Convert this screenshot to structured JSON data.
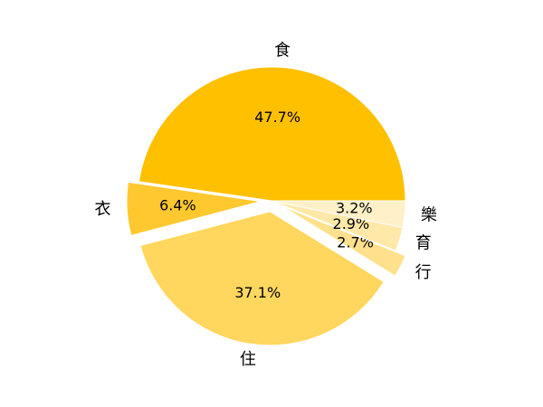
{
  "chart_data": {
    "type": "pie",
    "title": "",
    "start_angle_deg": 0,
    "direction": "counterclockwise",
    "slices": [
      {
        "label": "食",
        "value": 47.7,
        "pct_text": "47.7%",
        "color": "#FFC000",
        "exploded": false
      },
      {
        "label": "衣",
        "value": 6.4,
        "pct_text": "6.4%",
        "color": "#FFC82E",
        "exploded": true
      },
      {
        "label": "住",
        "value": 37.1,
        "pct_text": "37.1%",
        "color": "#FFD75E",
        "exploded": true
      },
      {
        "label": "行",
        "value": 2.7,
        "pct_text": "2.7%",
        "color": "#FFE08C",
        "exploded": true
      },
      {
        "label": "育",
        "value": 2.9,
        "pct_text": "2.9%",
        "color": "#FFE8A8",
        "exploded": false
      },
      {
        "label": "樂",
        "value": 3.2,
        "pct_text": "3.2%",
        "color": "#FFF0C8",
        "exploded": false
      }
    ]
  }
}
